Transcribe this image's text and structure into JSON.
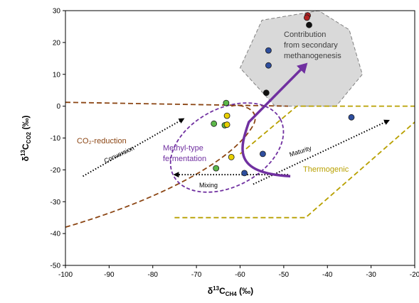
{
  "chart_data": {
    "type": "scatter",
    "xlabel": "δ¹³C_CH4 (‰)",
    "ylabel": "δ¹³C_CO2 (‰)",
    "xlim": [
      -100,
      -20
    ],
    "ylim": [
      -50,
      30
    ],
    "x_ticks": [
      "-100",
      "-90",
      "-80",
      "-70",
      "-60",
      "-50",
      "-40",
      "-30",
      "-20"
    ],
    "y_ticks": [
      "30",
      "20",
      "10",
      "0",
      "-10",
      "-20",
      "-30",
      "-40",
      "-50"
    ],
    "grid": false,
    "regions": [
      {
        "label": "CO₂-reduction",
        "color": "#8B4513"
      },
      {
        "label": "Methyl-type fermentation",
        "color": "#7030A0"
      },
      {
        "label": "Thermogenic",
        "color": "#B8A000"
      },
      {
        "label": "Contribution from secondary methanogenesis",
        "color": "#404040"
      }
    ],
    "arrow_labels": {
      "conversion": "Conversion",
      "mixing": "Mixing",
      "maturity": "Maturity"
    },
    "points": [
      {
        "x": -44.5,
        "y": 28.5,
        "color": "#B22222"
      },
      {
        "x": -44.7,
        "y": 27.8,
        "color": "#B22222"
      },
      {
        "x": -44.2,
        "y": 25.5,
        "color": "#111111"
      },
      {
        "x": -53.5,
        "y": 17.5,
        "color": "#2E4E9E"
      },
      {
        "x": -53.5,
        "y": 12.8,
        "color": "#2E4E9E"
      },
      {
        "x": -54.0,
        "y": 4.2,
        "color": "#111111"
      },
      {
        "x": -34.5,
        "y": -3.5,
        "color": "#2E4E9E"
      },
      {
        "x": -54.8,
        "y": -15.0,
        "color": "#2E4E9E"
      },
      {
        "x": -59.0,
        "y": -21.0,
        "color": "#2E4E9E"
      },
      {
        "x": -63.2,
        "y": 1.0,
        "color": "#5DB84A"
      },
      {
        "x": -66.0,
        "y": -5.5,
        "color": "#5DB84A"
      },
      {
        "x": -63.5,
        "y": -6.0,
        "color": "#5DB84A"
      },
      {
        "x": -65.5,
        "y": -19.5,
        "color": "#5DB84A"
      },
      {
        "x": -63.0,
        "y": -3.0,
        "color": "#E8D000"
      },
      {
        "x": -63.0,
        "y": -5.8,
        "color": "#E8D000"
      },
      {
        "x": -62.0,
        "y": -16.0,
        "color": "#E8D000"
      }
    ],
    "colors": {
      "co2_reduction_boundary": "#8B4513",
      "thermogenic_boundary": "#B8A000",
      "fermentation_boundary": "#7030A0",
      "secondary_region_fill": "#D9D9D9",
      "secondary_region_stroke": "#808080",
      "trend_arrow": "#7030A0"
    }
  }
}
